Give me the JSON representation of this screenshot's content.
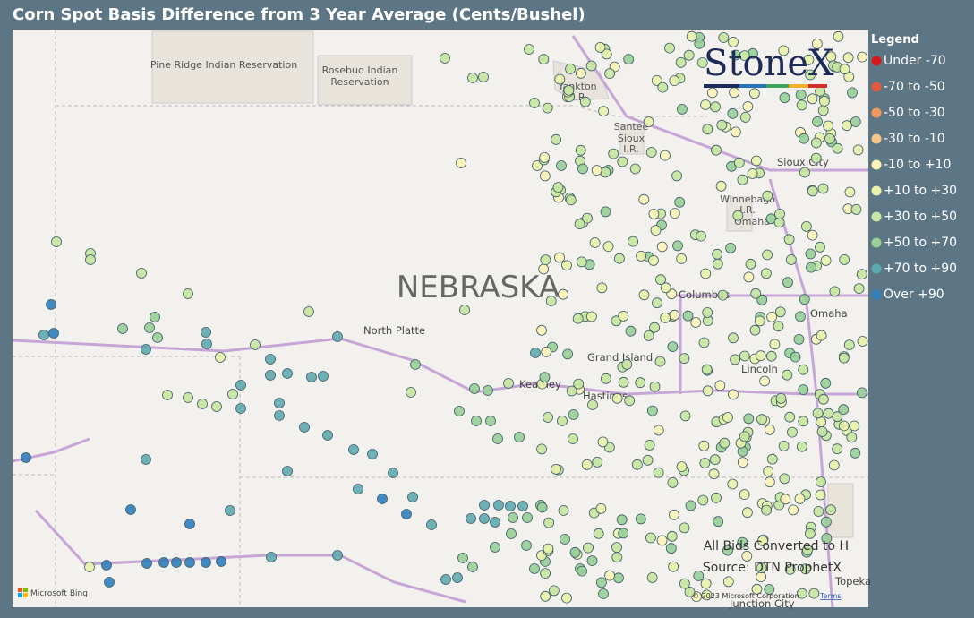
{
  "header": {
    "title": "Corn Spot Basis Difference from 3 Year Average (Cents/Bushel)"
  },
  "legend": {
    "title": "Legend",
    "items": [
      {
        "label": "Under -70",
        "color": "#d7191c"
      },
      {
        "label": "-70 to -50",
        "color": "#e35a3c"
      },
      {
        "label": "-50 to -30",
        "color": "#f0975e"
      },
      {
        "label": "-30 to -10",
        "color": "#f6c48a"
      },
      {
        "label": "-10 to +10",
        "color": "#fbf3b8"
      },
      {
        "label": "+10 to +30",
        "color": "#e8f2aa"
      },
      {
        "label": "+30 to +50",
        "color": "#c6e5a0"
      },
      {
        "label": "+50 to +70",
        "color": "#97cf96"
      },
      {
        "label": "+70 to +90",
        "color": "#5ea9ae"
      },
      {
        "label": "Over +90",
        "color": "#2f80bd"
      }
    ]
  },
  "map": {
    "labels": {
      "pine_ridge": "Pine Ridge Indian Reservation",
      "rosebud_1": "Rosebud Indian",
      "rosebud_2": "Reservation",
      "yankton_1": "Yankton",
      "yankton_2": "I.R.",
      "santee_1": "Santee",
      "santee_2": "Sioux",
      "santee_3": "I.R.",
      "sioux_city": "Sioux City",
      "winnebago_1": "Winnebago",
      "winnebago_2": "I.R.",
      "omaha_ir": "Omaha",
      "state": "NEBRASKA",
      "north_platte": "North Platte",
      "columbus": "Columbus",
      "omaha": "Omaha",
      "grand_island": "Grand Island",
      "kearney": "Kearney",
      "hastings": "Hastings",
      "lincoln": "Lincoln",
      "topeka": "Topeka",
      "junction_city": "Junction City"
    },
    "logo": "StoneX",
    "note_1": "All Bids Converted to H",
    "note_2": "Source: DTN ProphetX",
    "bing": "Microsoft Bing",
    "copyright": "© 2023 Microsoft Corporation",
    "terms": "Terms"
  }
}
